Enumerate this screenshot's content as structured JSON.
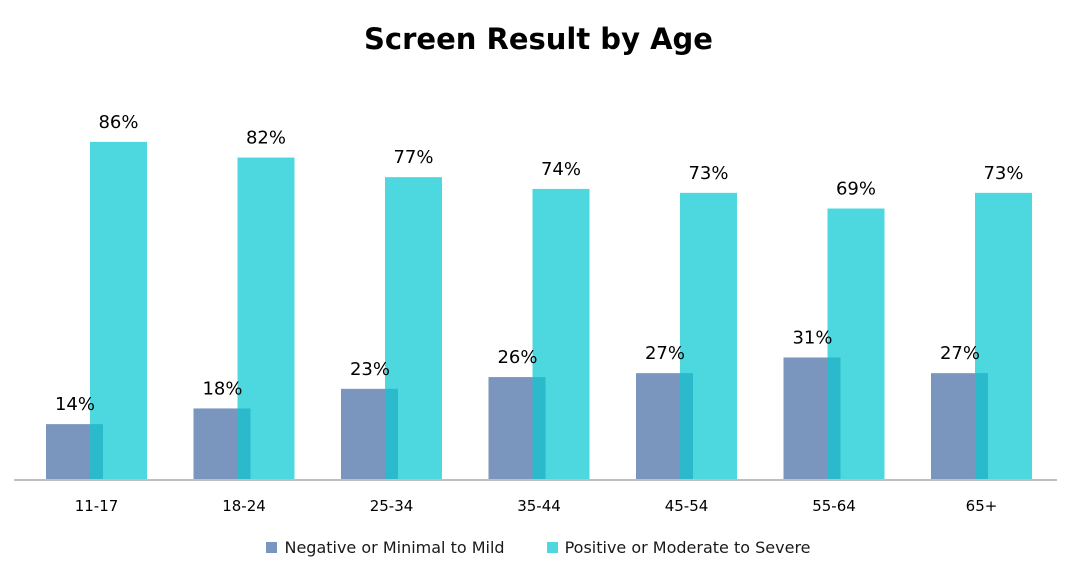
{
  "chart_data": {
    "type": "bar",
    "title": "Screen Result by Age",
    "xlabel": "",
    "ylabel": "",
    "categories": [
      "11-17",
      "18-24",
      "25-34",
      "35-44",
      "45-54",
      "55-64",
      "65+"
    ],
    "series": [
      {
        "name": "Negative or Minimal to Mild",
        "color": "#7B96BE",
        "values": [
          14,
          18,
          23,
          26,
          27,
          31,
          27
        ],
        "labels": [
          "14%",
          "18%",
          "23%",
          "26%",
          "27%",
          "31%",
          "27%"
        ]
      },
      {
        "name": "Positive or Moderate to Severe",
        "color": "#4DD7DF",
        "values": [
          86,
          82,
          77,
          74,
          73,
          69,
          73
        ],
        "labels": [
          "86%",
          "82%",
          "77%",
          "74%",
          "73%",
          "69%",
          "73%"
        ]
      }
    ],
    "overlap_color": "#2BB9CC",
    "axis_color": "#BFBFBF",
    "ylim": [
      0,
      100
    ],
    "grid": false,
    "legend_position": "bottom"
  }
}
